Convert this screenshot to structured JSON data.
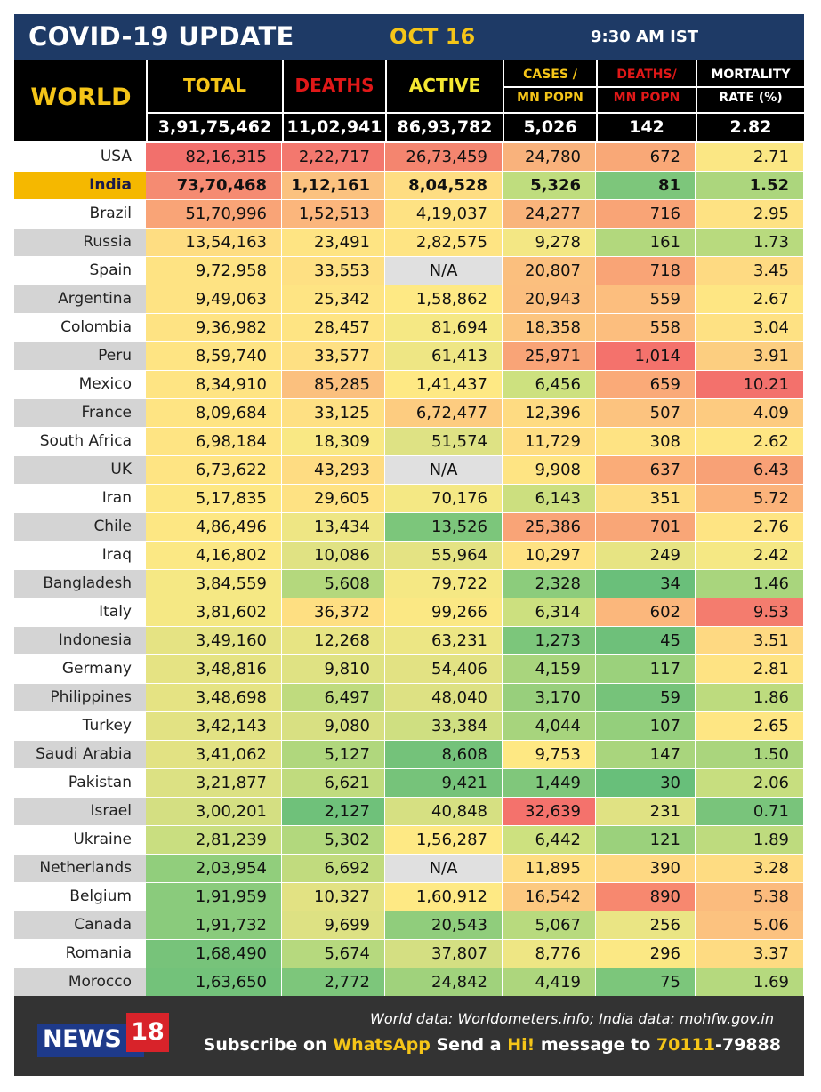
{
  "title": {
    "main": "COVID-19 UPDATE",
    "date": "OCT 16",
    "time": "9:30 AM IST"
  },
  "header": {
    "region": "WORLD",
    "columns": [
      {
        "line1": "TOTAL",
        "line2": ""
      },
      {
        "line1": "DEATHS",
        "line2": ""
      },
      {
        "line1": "ACTIVE",
        "line2": ""
      },
      {
        "line1": "CASES /",
        "line2": "MN POPN"
      },
      {
        "line1": "DEATHS/",
        "line2": "MN POPN"
      },
      {
        "line1": "MORTALITY",
        "line2": "RATE (%)"
      }
    ],
    "world_values": [
      "3,91,75,462",
      "11,02,941",
      "86,93,782",
      "5,026",
      "142",
      "2.82"
    ]
  },
  "colors": {
    "title_bg": "#1e3a66",
    "accent_yellow": "#f5c518",
    "accent_red": "#e01818",
    "header_bg": "#000000",
    "footer_bg": "#333333",
    "india_highlight": "#f5b800",
    "row_alt": "#d4d4d4"
  },
  "rows": [
    {
      "country": "USA",
      "values": [
        "82,16,315",
        "2,22,717",
        "26,73,459",
        "24,780",
        "672",
        "2.71"
      ],
      "colors": [
        "#f2706c",
        "#f3786e",
        "#f4856f",
        "#f9b27c",
        "#f9a877",
        "#fbe784"
      ]
    },
    {
      "country": "India",
      "values": [
        "73,70,468",
        "1,12,161",
        "8,04,528",
        "5,326",
        "81",
        "1.52"
      ],
      "colors": [
        "#f58b72",
        "#fbc27f",
        "#fedd82",
        "#bfdd7e",
        "#7dc67b",
        "#acd67d"
      ]
    },
    {
      "country": "Brazil",
      "values": [
        "51,70,996",
        "1,52,513",
        "4,19,037",
        "24,277",
        "716",
        "2.95"
      ],
      "colors": [
        "#f9a477",
        "#fbb67c",
        "#fee283",
        "#f9b47b",
        "#f9a476",
        "#fee283"
      ]
    },
    {
      "country": "Russia",
      "values": [
        "13,54,163",
        "23,491",
        "2,82,575",
        "9,278",
        "161",
        "1.73"
      ],
      "colors": [
        "#fedd82",
        "#fee483",
        "#fee483",
        "#f3e784",
        "#b2d87d",
        "#b8da7e"
      ]
    },
    {
      "country": "Spain",
      "values": [
        "9,72,958",
        "33,553",
        "N/A",
        "20,807",
        "718",
        "3.45"
      ],
      "colors": [
        "#fee383",
        "#fee083",
        "#e0e0e0",
        "#fbbf7e",
        "#f9a476",
        "#feda82"
      ]
    },
    {
      "country": "Argentina",
      "values": [
        "9,49,063",
        "25,342",
        "1,58,862",
        "20,943",
        "559",
        "2.67"
      ],
      "colors": [
        "#fee383",
        "#fee483",
        "#fee984",
        "#fbbe7e",
        "#fcbe7e",
        "#fee683"
      ]
    },
    {
      "country": "Colombia",
      "values": [
        "9,36,982",
        "28,457",
        "81,694",
        "18,358",
        "558",
        "3.04"
      ],
      "colors": [
        "#fee383",
        "#fee483",
        "#f5e884",
        "#fcc57f",
        "#fcbe7e",
        "#fee183"
      ]
    },
    {
      "country": "Peru",
      "values": [
        "8,59,740",
        "33,577",
        "61,413",
        "25,971",
        "1,014",
        "3.91"
      ],
      "colors": [
        "#fee483",
        "#fee083",
        "#eee684",
        "#f9a477",
        "#f4726c",
        "#fcce80"
      ]
    },
    {
      "country": "Mexico",
      "values": [
        "8,34,910",
        "85,285",
        "1,41,437",
        "6,456",
        "659",
        "10.21"
      ],
      "colors": [
        "#fee483",
        "#fbc07e",
        "#fee984",
        "#cde17f",
        "#faaa78",
        "#f3716c"
      ]
    },
    {
      "country": "France",
      "values": [
        "8,09,684",
        "33,125",
        "6,72,477",
        "12,396",
        "507",
        "4.09"
      ],
      "colors": [
        "#fee483",
        "#fee083",
        "#fdcc80",
        "#fedb82",
        "#fcc37f",
        "#fdcb80"
      ]
    },
    {
      "country": "South Africa",
      "values": [
        "6,98,184",
        "18,309",
        "51,574",
        "11,729",
        "308",
        "2.62"
      ],
      "colors": [
        "#fee483",
        "#f9e884",
        "#dee284",
        "#fedd82",
        "#fee383",
        "#fee683"
      ]
    },
    {
      "country": "UK",
      "values": [
        "6,73,622",
        "43,293",
        "N/A",
        "9,908",
        "637",
        "6.43"
      ],
      "colors": [
        "#fee483",
        "#fedc82",
        "#e0e0e0",
        "#fee483",
        "#faac78",
        "#f8a176"
      ]
    },
    {
      "country": "Iran",
      "values": [
        "5,17,835",
        "29,605",
        "70,176",
        "6,143",
        "351",
        "5.72"
      ],
      "colors": [
        "#fde783",
        "#fee283",
        "#f4e884",
        "#ccdf7f",
        "#fedd82",
        "#fbb37b"
      ]
    },
    {
      "country": "Chile",
      "values": [
        "4,86,496",
        "13,434",
        "13,526",
        "25,386",
        "701",
        "2.76"
      ],
      "colors": [
        "#fde783",
        "#eee684",
        "#7cc67b",
        "#f9a477",
        "#f9a677",
        "#fee483"
      ]
    },
    {
      "country": "Iraq",
      "values": [
        "4,16,802",
        "10,086",
        "55,964",
        "10,297",
        "249",
        "2.42"
      ],
      "colors": [
        "#fbe884",
        "#e0e283",
        "#e4e383",
        "#fee283",
        "#e7e483",
        "#f5e884"
      ]
    },
    {
      "country": "Bangladesh",
      "values": [
        "3,84,559",
        "5,608",
        "79,722",
        "2,328",
        "34",
        "1.46"
      ],
      "colors": [
        "#f5e884",
        "#b4d87d",
        "#f5e884",
        "#8ccc7c",
        "#6abf7a",
        "#a9d57d"
      ]
    },
    {
      "country": "Italy",
      "values": [
        "3,81,602",
        "36,372",
        "99,266",
        "6,314",
        "602",
        "9.53"
      ],
      "colors": [
        "#f5e884",
        "#fedf82",
        "#fbe884",
        "#cce07f",
        "#fbb77c",
        "#f47c6e"
      ]
    },
    {
      "country": "Indonesia",
      "values": [
        "3,49,160",
        "12,268",
        "63,231",
        "1,273",
        "45",
        "3.51"
      ],
      "colors": [
        "#e5e383",
        "#e7e483",
        "#ecE684",
        "#7cc67b",
        "#6ec07a",
        "#fed982"
      ]
    },
    {
      "country": "Germany",
      "values": [
        "3,48,816",
        "9,810",
        "54,406",
        "4,159",
        "117",
        "2.81"
      ],
      "colors": [
        "#e5e383",
        "#dfe283",
        "#e2e283",
        "#a9d57d",
        "#9bd17c",
        "#fee383"
      ]
    },
    {
      "country": "Philippines",
      "values": [
        "3,48,698",
        "6,497",
        "48,040",
        "3,170",
        "59",
        "1.86"
      ],
      "colors": [
        "#e5e383",
        "#bfdb7e",
        "#dde183",
        "#98cf7c",
        "#76c37a",
        "#bddb7e"
      ]
    },
    {
      "country": "Turkey",
      "values": [
        "3,42,143",
        "9,080",
        "33,384",
        "4,044",
        "107",
        "2.65"
      ],
      "colors": [
        "#e2e283",
        "#d8e082",
        "#cfdf81",
        "#a7d47d",
        "#94cf7c",
        "#fee683"
      ]
    },
    {
      "country": "Saudi Arabia",
      "values": [
        "3,41,062",
        "5,127",
        "8,608",
        "9,753",
        "147",
        "1.50"
      ],
      "colors": [
        "#e2e283",
        "#b0d77d",
        "#74c27a",
        "#fee883",
        "#a9d57d",
        "#aad57d"
      ]
    },
    {
      "country": "Pakistan",
      "values": [
        "3,21,877",
        "6,621",
        "9,421",
        "1,449",
        "30",
        "2.06"
      ],
      "colors": [
        "#dce183",
        "#c0db7e",
        "#76c37a",
        "#80c77b",
        "#68bf7a",
        "#c7de7f"
      ]
    },
    {
      "country": "Israel",
      "values": [
        "3,00,201",
        "2,127",
        "40,848",
        "32,639",
        "231",
        "0.71"
      ],
      "colors": [
        "#d4df82",
        "#6fc17a",
        "#d6e082",
        "#f4726c",
        "#e0e283",
        "#79c47b"
      ]
    },
    {
      "country": "Ukraine",
      "values": [
        "2,81,239",
        "5,302",
        "1,56,287",
        "6,442",
        "121",
        "1.89"
      ],
      "colors": [
        "#c9de80",
        "#b2d87d",
        "#fee984",
        "#cde17f",
        "#9bd17c",
        "#bedb7e"
      ]
    },
    {
      "country": "Netherlands",
      "values": [
        "2,03,954",
        "6,692",
        "N/A",
        "11,895",
        "390",
        "3.28"
      ],
      "colors": [
        "#91ce7c",
        "#c1db7e",
        "#e0e0e0",
        "#fedd82",
        "#fed882",
        "#fedc82"
      ]
    },
    {
      "country": "Belgium",
      "values": [
        "1,91,959",
        "10,327",
        "1,60,912",
        "16,542",
        "890",
        "5.38"
      ],
      "colors": [
        "#8acb7c",
        "#e2e283",
        "#fee984",
        "#fcc980",
        "#f7886f",
        "#fbbb7d"
      ]
    },
    {
      "country": "Canada",
      "values": [
        "1,91,732",
        "9,699",
        "20,543",
        "5,067",
        "256",
        "5.06"
      ],
      "colors": [
        "#8acb7c",
        "#dde183",
        "#90cd7c",
        "#b8da7e",
        "#eae584",
        "#fcc27f"
      ]
    },
    {
      "country": "Romania",
      "values": [
        "1,68,490",
        "5,674",
        "37,807",
        "8,776",
        "296",
        "3.37"
      ],
      "colors": [
        "#77c37a",
        "#b6d97e",
        "#d4df82",
        "#eee684",
        "#fbe884",
        "#fedb82"
      ]
    },
    {
      "country": "Morocco",
      "values": [
        "1,63,650",
        "2,772",
        "24,842",
        "4,419",
        "75",
        "1.69"
      ],
      "colors": [
        "#73c27a",
        "#7dc67b",
        "#a0d27c",
        "#adD67d",
        "#7cc67b",
        "#b5d97e"
      ]
    }
  ],
  "footer": {
    "source": "World data: Worldometers.info; India data: mohfw.gov.in",
    "subscribe_pre": "Subscribe on ",
    "subscribe_app": "WhatsApp",
    "subscribe_mid": " Send a ",
    "subscribe_hi": "Hi!",
    "subscribe_post": " message to ",
    "phone_a": "70111",
    "phone_b": "-79888",
    "logo_text": "NEWS",
    "logo_num": "18"
  }
}
